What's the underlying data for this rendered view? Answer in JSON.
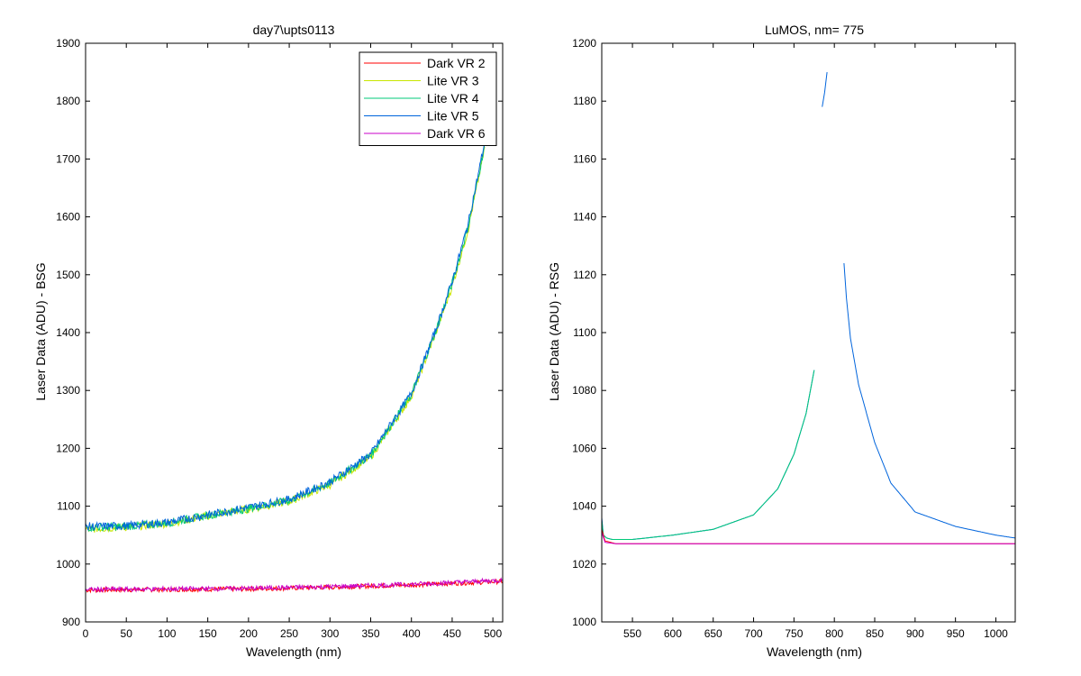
{
  "chart_data": [
    {
      "type": "line",
      "title": "day7\\upts0113",
      "xlabel": "Wavelength (nm)",
      "ylabel": "Laser Data (ADU) - BSG",
      "xlim": [
        0,
        512
      ],
      "ylim": [
        900,
        1900
      ],
      "xticks": [
        0,
        50,
        100,
        150,
        200,
        250,
        300,
        350,
        400,
        450,
        500
      ],
      "yticks": [
        900,
        1000,
        1100,
        1200,
        1300,
        1400,
        1500,
        1600,
        1700,
        1800,
        1900
      ],
      "legend": {
        "position": "top-right"
      },
      "series": [
        {
          "name": "Dark VR 2",
          "color": "#ff0000",
          "noise": 4,
          "x": [
            0,
            100,
            200,
            300,
            400,
            512
          ],
          "y": [
            955,
            956,
            957,
            960,
            964,
            970
          ]
        },
        {
          "name": "Lite VR 3",
          "color": "#c8e600",
          "noise": 7,
          "x": [
            0,
            50,
            100,
            150,
            200,
            250,
            300,
            350,
            400,
            430,
            450,
            470,
            490
          ],
          "y": [
            1060,
            1064,
            1070,
            1083,
            1095,
            1108,
            1137,
            1185,
            1290,
            1400,
            1480,
            1580,
            1720
          ]
        },
        {
          "name": "Lite VR 4",
          "color": "#00c878",
          "noise": 7,
          "x": [
            0,
            50,
            100,
            150,
            200,
            250,
            300,
            350,
            400,
            430,
            450,
            470,
            490
          ],
          "y": [
            1063,
            1065,
            1071,
            1084,
            1096,
            1110,
            1140,
            1188,
            1293,
            1403,
            1485,
            1585,
            1725
          ]
        },
        {
          "name": "Lite VR 5",
          "color": "#0064dc",
          "noise": 7,
          "x": [
            0,
            50,
            100,
            150,
            200,
            250,
            300,
            350,
            400,
            430,
            450,
            470,
            490
          ],
          "y": [
            1065,
            1066,
            1072,
            1085,
            1098,
            1112,
            1142,
            1190,
            1295,
            1405,
            1488,
            1590,
            1730
          ]
        },
        {
          "name": "Dark VR 6",
          "color": "#c800c8",
          "noise": 4,
          "x": [
            0,
            100,
            200,
            300,
            400,
            512
          ],
          "y": [
            956,
            957,
            958,
            961,
            965,
            972
          ]
        }
      ]
    },
    {
      "type": "line",
      "title": "LuMOS, nm= 775",
      "xlabel": "Wavelength (nm)",
      "ylabel": "Laser Data (ADU) - RSG",
      "xlim": [
        512,
        1024
      ],
      "ylim": [
        1000,
        1200
      ],
      "xticks": [
        550,
        600,
        650,
        700,
        750,
        800,
        850,
        900,
        950,
        1000
      ],
      "yticks": [
        1000,
        1020,
        1040,
        1060,
        1080,
        1100,
        1120,
        1140,
        1160,
        1180,
        1200
      ],
      "segments": [
        {
          "color": "#0064dc",
          "x": [
            512,
            514,
            518,
            525,
            550,
            600,
            650,
            700,
            730,
            750,
            765,
            775
          ],
          "y": [
            1036,
            1030,
            1029,
            1028.5,
            1028.5,
            1030,
            1032,
            1037,
            1046,
            1058,
            1072,
            1087
          ]
        },
        {
          "color": "#0064dc",
          "x": [
            785,
            788,
            791
          ],
          "y": [
            1178,
            1183,
            1190
          ]
        },
        {
          "color": "#0064dc",
          "x": [
            812,
            815,
            820,
            830,
            850,
            870,
            900,
            950,
            1000,
            1024
          ],
          "y": [
            1124,
            1112,
            1098,
            1082,
            1062,
            1048,
            1038,
            1033,
            1030,
            1029
          ]
        },
        {
          "color": "#00c878",
          "x": [
            512,
            514,
            518,
            525,
            550,
            600,
            650,
            700,
            730,
            750,
            765,
            775
          ],
          "y": [
            1035,
            1030,
            1029,
            1028.5,
            1028.5,
            1030,
            1032,
            1037,
            1046,
            1058,
            1072,
            1087
          ]
        },
        {
          "color": "#ff0000",
          "x": [
            512,
            516,
            530,
            1024
          ],
          "y": [
            1032,
            1028,
            1027,
            1027
          ]
        },
        {
          "color": "#c800c8",
          "x": [
            512,
            516,
            530,
            1024
          ],
          "y": [
            1031,
            1027.5,
            1027,
            1027
          ]
        }
      ]
    }
  ]
}
